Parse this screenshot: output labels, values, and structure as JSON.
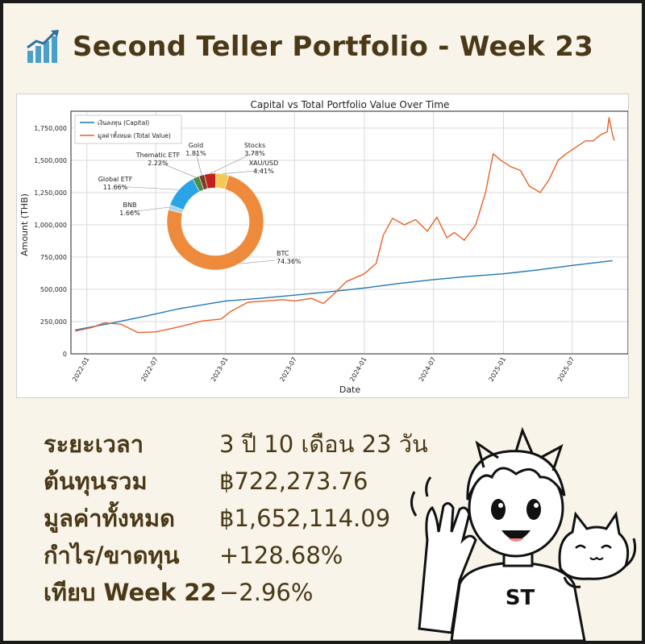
{
  "title": {
    "icon": "bar-chart-growth-icon",
    "text": "Second Teller Portfolio - Week 23"
  },
  "chart_data": [
    {
      "type": "line",
      "title": "Capital vs Total Portfolio Value Over Time",
      "xlabel": "Date",
      "ylabel": "Amount (THB)",
      "x_ticks": [
        "2022-01",
        "2022-07",
        "2023-01",
        "2023-07",
        "2024-01",
        "2024-07",
        "2025-01",
        "2025-07"
      ],
      "y_ticks": [
        "0",
        "250,000",
        "500,000",
        "750,000",
        "1,000,000",
        "1,250,000",
        "1,500,000",
        "1,750,000"
      ],
      "ylim": [
        0,
        1880000
      ],
      "xlim": [
        "2021-11-20",
        "2025-11-25"
      ],
      "grid": true,
      "legend_position": "top-left",
      "series": [
        {
          "name": "เงินลงทุน (Capital)",
          "color": "#1f77b4",
          "x": [
            "2021-12-01",
            "2022-03-01",
            "2022-06-01",
            "2022-09-01",
            "2023-01-01",
            "2023-04-01",
            "2023-07-01",
            "2023-10-01",
            "2024-01-01",
            "2024-04-01",
            "2024-07-01",
            "2024-10-01",
            "2025-01-01",
            "2025-04-01",
            "2025-07-01",
            "2025-10-15"
          ],
          "y": [
            185000,
            235000,
            290000,
            350000,
            410000,
            430000,
            455000,
            480000,
            510000,
            545000,
            575000,
            600000,
            620000,
            650000,
            685000,
            722274
          ]
        },
        {
          "name": "มูลค่าทั้งหมด (Total Value)",
          "color": "#e8622a",
          "x": [
            "2021-12-01",
            "2022-01-15",
            "2022-02-15",
            "2022-04-01",
            "2022-05-15",
            "2022-07-01",
            "2022-09-01",
            "2022-11-01",
            "2022-12-20",
            "2023-01-15",
            "2023-03-01",
            "2023-04-15",
            "2023-06-01",
            "2023-07-01",
            "2023-08-15",
            "2023-09-15",
            "2023-10-15",
            "2023-11-15",
            "2024-01-01",
            "2024-02-01",
            "2024-02-20",
            "2024-03-15",
            "2024-04-15",
            "2024-05-15",
            "2024-06-15",
            "2024-07-10",
            "2024-08-05",
            "2024-08-25",
            "2024-09-20",
            "2024-10-20",
            "2024-11-15",
            "2024-12-05",
            "2024-12-25",
            "2025-01-20",
            "2025-02-15",
            "2025-03-10",
            "2025-04-08",
            "2025-05-01",
            "2025-05-25",
            "2025-06-15",
            "2025-07-10",
            "2025-08-05",
            "2025-08-25",
            "2025-09-15",
            "2025-10-01",
            "2025-10-06",
            "2025-10-15",
            "2025-10-20"
          ],
          "y": [
            175000,
            205000,
            240000,
            230000,
            165000,
            170000,
            210000,
            255000,
            270000,
            330000,
            400000,
            410000,
            420000,
            410000,
            430000,
            390000,
            470000,
            560000,
            620000,
            700000,
            920000,
            1050000,
            1000000,
            1040000,
            950000,
            1060000,
            900000,
            940000,
            880000,
            1000000,
            1250000,
            1550000,
            1500000,
            1450000,
            1420000,
            1300000,
            1250000,
            1350000,
            1500000,
            1550000,
            1600000,
            1650000,
            1650000,
            1700000,
            1720000,
            1830000,
            1700000,
            1652114
          ]
        }
      ],
      "legend": [
        "เงินลงทุน (Capital)",
        "มูลค่าทั้งหมด (Total Value)"
      ]
    },
    {
      "type": "pie",
      "donut": true,
      "slices": [
        {
          "label": "BTC",
          "value": 74.36,
          "text": "74.36%",
          "color": "#ee8a3c"
        },
        {
          "label": "BNB",
          "value": 1.66,
          "text": "1.66%",
          "color": "#a6d4f0"
        },
        {
          "label": "Global ETF",
          "value": 11.66,
          "text": "11.66%",
          "color": "#2ba4e6"
        },
        {
          "label": "Thematic ETF",
          "value": 2.22,
          "text": "2.22%",
          "color": "#4a8c4a"
        },
        {
          "label": "Gold",
          "value": 1.81,
          "text": "1.81%",
          "color": "#7a3b1e"
        },
        {
          "label": "Stocks",
          "value": 3.78,
          "text": "3.78%",
          "color": "#c41f1f"
        },
        {
          "label": "XAU/USD",
          "value": 4.41,
          "text": "4.41%",
          "color": "#f3c95a"
        }
      ]
    }
  ],
  "stats": [
    {
      "label": "ระยะเวลา",
      "value": "3 ปี 10 เดือน 23 วัน"
    },
    {
      "label": "ต้นทุนรวม",
      "value": "฿722,273.76"
    },
    {
      "label": "มูลค่าทั้งหมด",
      "value": "฿1,652,114.09"
    },
    {
      "label": "กำไร/ขาดทุน",
      "value": "+128.68%"
    },
    {
      "label": "เทียบ Week 22",
      "value": "−2.96%"
    }
  ],
  "illustration": {
    "shirt_text": "ST"
  },
  "colors": {
    "background": "#f8f4ea",
    "text_brown": "#4a3816",
    "capital_line": "#1f77b4",
    "value_line": "#e8622a"
  }
}
